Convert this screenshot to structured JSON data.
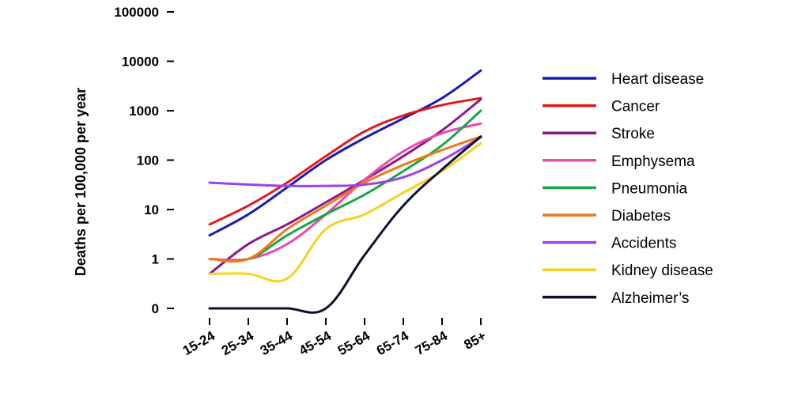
{
  "chart_data": {
    "type": "line",
    "ylabel": "Deaths per 100,000 per year",
    "xlabel": "",
    "yscale": "log",
    "categories": [
      "15-24",
      "25-34",
      "35-44",
      "45-54",
      "55-64",
      "65-74",
      "75-84",
      "85+"
    ],
    "y_ticks": [
      {
        "value": 0.1,
        "label": "0"
      },
      {
        "value": 1,
        "label": "1"
      },
      {
        "value": 10,
        "label": "10"
      },
      {
        "value": 100,
        "label": "100"
      },
      {
        "value": 1000,
        "label": "1000"
      },
      {
        "value": 10000,
        "label": "10000"
      },
      {
        "value": 100000,
        "label": "100000"
      }
    ],
    "ylim": [
      0.1,
      100000
    ],
    "legend_position": "right",
    "series": [
      {
        "name": "Heart disease",
        "color": "#1a1ab8",
        "values": [
          3,
          8,
          28,
          100,
          280,
          700,
          1800,
          6500
        ]
      },
      {
        "name": "Cancer",
        "color": "#e01b1b",
        "values": [
          5,
          12,
          35,
          120,
          380,
          800,
          1300,
          1800
        ]
      },
      {
        "name": "Stroke",
        "color": "#8b1a8b",
        "values": [
          0.5,
          2,
          5,
          14,
          40,
          120,
          400,
          1700
        ]
      },
      {
        "name": "Emphysema",
        "color": "#ee4aa9",
        "values": [
          1,
          1,
          2,
          8,
          40,
          150,
          350,
          550
        ]
      },
      {
        "name": "Pneumonia",
        "color": "#19a64b",
        "values": [
          1,
          1,
          3,
          8,
          20,
          60,
          200,
          1000
        ]
      },
      {
        "name": "Diabetes",
        "color": "#f07a1c",
        "values": [
          1,
          1,
          4,
          12,
          35,
          80,
          160,
          300
        ]
      },
      {
        "name": "Accidents",
        "color": "#9b42e8",
        "values": [
          35,
          32,
          30,
          30,
          32,
          45,
          100,
          290
        ]
      },
      {
        "name": "Kidney disease",
        "color": "#f6d11e",
        "values": [
          0.5,
          0.5,
          0.4,
          4,
          8,
          22,
          60,
          220
        ]
      },
      {
        "name": "Alzheimer’s",
        "color": "#0b1233",
        "values": [
          0.1,
          0.1,
          0.1,
          0.1,
          1.2,
          12,
          65,
          300
        ]
      }
    ]
  }
}
